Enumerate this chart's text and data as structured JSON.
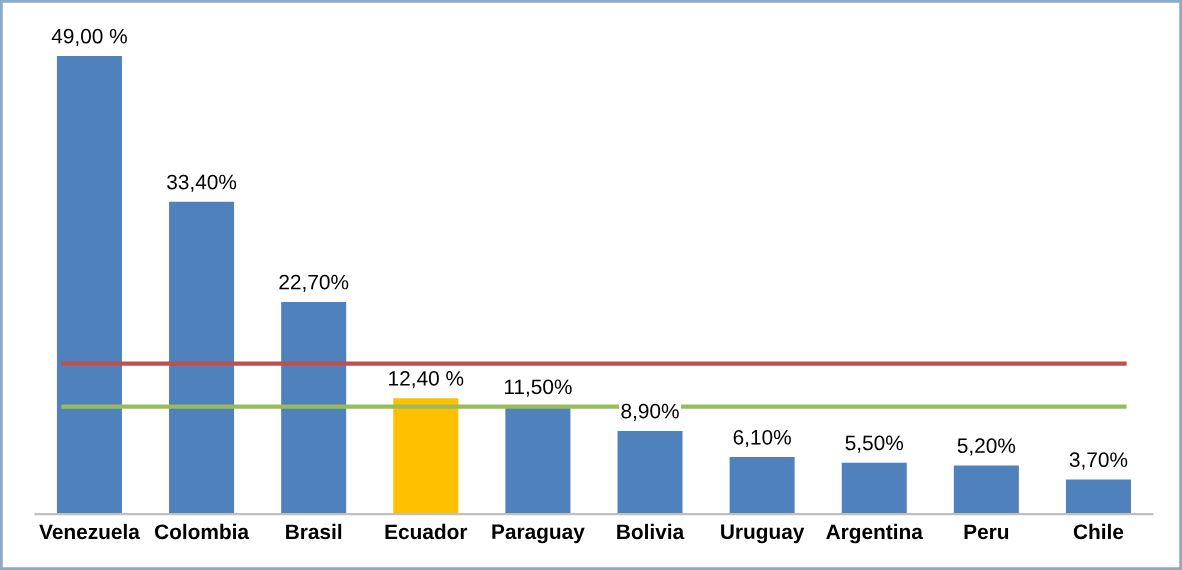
{
  "chart_data": {
    "type": "bar",
    "categories": [
      "Venezuela",
      "Colombia",
      "Brasil",
      "Ecuador",
      "Paraguay",
      "Bolivia",
      "Uruguay",
      "Argentina",
      "Peru",
      "Chile"
    ],
    "values": [
      49.0,
      33.4,
      22.7,
      12.4,
      11.5,
      8.9,
      6.1,
      5.5,
      5.2,
      3.7
    ],
    "value_labels": [
      "49,00 %",
      "33,40%",
      "22,70%",
      "12,40 %",
      "11,50%",
      "8,90%",
      "6,10%",
      "5,50%",
      "5,20%",
      "3,70%"
    ],
    "colors": [
      "#4f81bd",
      "#4f81bd",
      "#4f81bd",
      "#ffc000",
      "#4f81bd",
      "#4f81bd",
      "#4f81bd",
      "#4f81bd",
      "#4f81bd",
      "#4f81bd"
    ],
    "ref_lines": [
      {
        "axis": "y",
        "value": 16.1,
        "label": null,
        "color": "#c0504d"
      },
      {
        "axis": "y",
        "value": 11.5,
        "label": null,
        "color": "#9bbb59"
      }
    ],
    "tick_labels": "x",
    "grid": false,
    "legend": false
  }
}
